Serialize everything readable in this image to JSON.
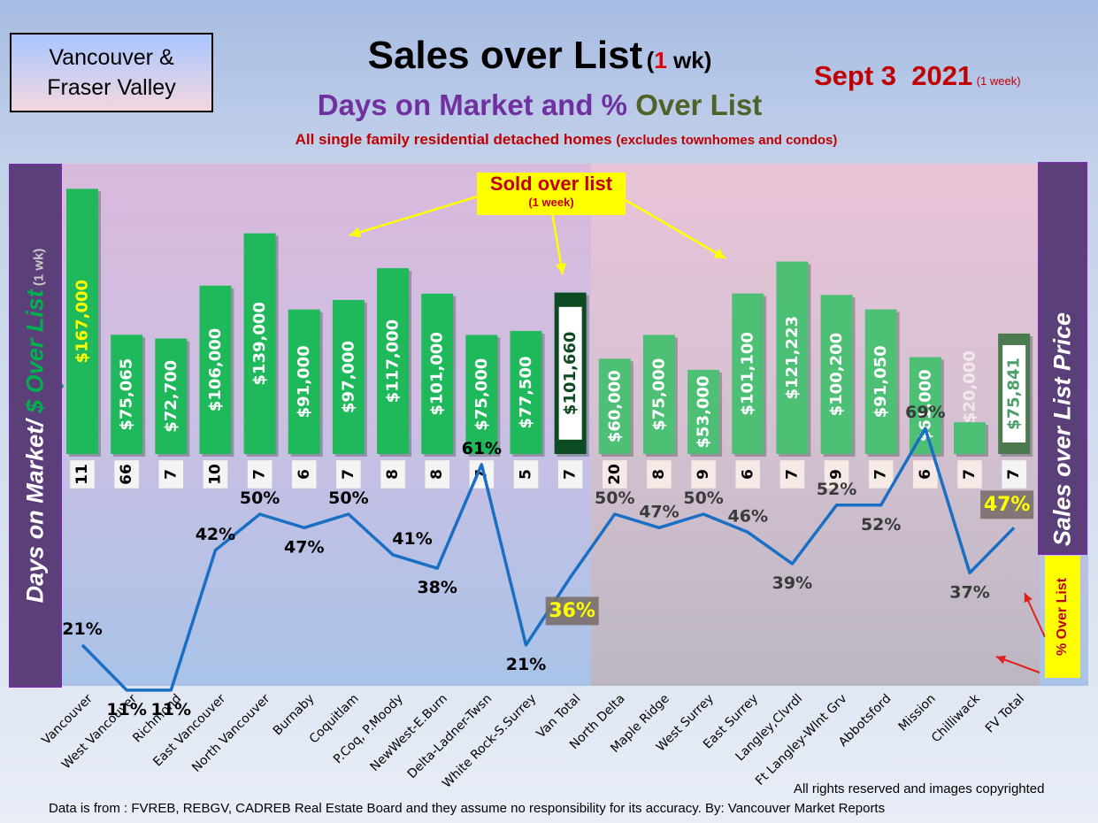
{
  "header": {
    "region_box": [
      "Vancouver &",
      "Fraser Valley"
    ],
    "title_main": "Sales over List",
    "title_paren_open": "(",
    "title_paren_num": "1",
    "title_paren_rest": " wk)",
    "subtitle_part1": "Days on Market and % ",
    "subtitle_part2": "Over List",
    "description": "All single family residential detached homes ",
    "description_small": "(excludes townhomes and condos)",
    "date": "Sept 3  2021",
    "date_note": "(1 week)"
  },
  "left_axis": {
    "part1": "Days on Market/ ",
    "part2": "$ Over List",
    "part3": " (1 wk)"
  },
  "right_axis": {
    "label": "Sales over List Price",
    "pct_label": "% Over List"
  },
  "callout": {
    "line1": "Sold over list",
    "line2": "(1 week)"
  },
  "footer": {
    "copyright": "All rights reserved and  images copyrighted",
    "source": "Data is from : FVREB, REBGV, CADREB Real Estate Board and they assume no responsibility for its accuracy. By: Vancouver Market Reports"
  },
  "colors": {
    "van_bar": "#1fb85a",
    "van_total_bar": "#0c4a22",
    "fv_bar": "#4ec076",
    "fv_total_bar": "#4a7a4e",
    "line": "#1a6fc4",
    "purple": "#7030a0",
    "red": "#c00000"
  },
  "chart_data": {
    "type": "bar",
    "categories": [
      "Vancouver",
      "West Vancouver",
      "Richmond",
      "East Vancouver",
      "North Vancouver",
      "Burnaby",
      "Coquitlam",
      "P.Coq, P.Moody",
      "NewWest-E.Burn",
      "Delta-Ladner-Twsn",
      "White Rock-S.Surrey",
      "Van Total",
      "North Delta",
      "Maple Ridge",
      "West Surrey",
      "East Surrey",
      "Langley,Clvrdl",
      "Ft Langley-Wlnt Grv",
      "Abbotsford",
      "Mission",
      "Chilliwack",
      "FV Total"
    ],
    "series": [
      {
        "values": [
          167000,
          75065,
          72700,
          106000,
          139000,
          91000,
          97000,
          117000,
          101000,
          75000,
          77500,
          101660,
          60000,
          75000,
          53000,
          101100,
          121223,
          100200,
          91050,
          61000,
          20000,
          75841
        ]
      },
      {
        "values": [
          11,
          66,
          7,
          10,
          7,
          6,
          7,
          8,
          8,
          7,
          5,
          7,
          20,
          8,
          9,
          6,
          7,
          9,
          7,
          6,
          7,
          7
        ]
      },
      {
        "values": [
          21,
          11,
          11,
          42,
          50,
          47,
          50,
          41,
          38,
          61,
          21,
          36,
          50,
          47,
          50,
          46,
          39,
          52,
          52,
          69,
          37,
          47
        ]
      }
    ],
    "bar_labels": [
      "$167,000",
      "$75,065",
      "$72,700",
      "$106,000",
      "$139,000",
      "$91,000",
      "$97,000",
      "$117,000",
      "$101,000",
      "$75,000",
      "$77,500",
      "$101,660",
      "$60,000",
      "$75,000",
      "$53,000",
      "$101,100",
      "$121,223",
      "$100,200",
      "$91,050",
      "$61,000",
      "$20,000",
      "$75,841"
    ],
    "dom_labels": [
      "11",
      "66",
      "7",
      "10",
      "7",
      "6",
      "7",
      "8",
      "8",
      "7",
      "5",
      "7",
      "20",
      "8",
      "9",
      "6",
      "7",
      "9",
      "7",
      "6",
      "7",
      "7"
    ],
    "pct_labels": [
      "21%",
      "11%",
      "11%",
      "42%",
      "50%",
      "47%",
      "50%",
      "41%",
      "38%",
      "61%",
      "21%",
      "36%",
      "50%",
      "47%",
      "50%",
      "46%",
      "39%",
      "52%",
      "52%",
      "69%",
      "37%",
      "47%"
    ],
    "bar_ylim": [
      0,
      170000
    ],
    "pct_ylim": [
      0,
      80
    ]
  }
}
